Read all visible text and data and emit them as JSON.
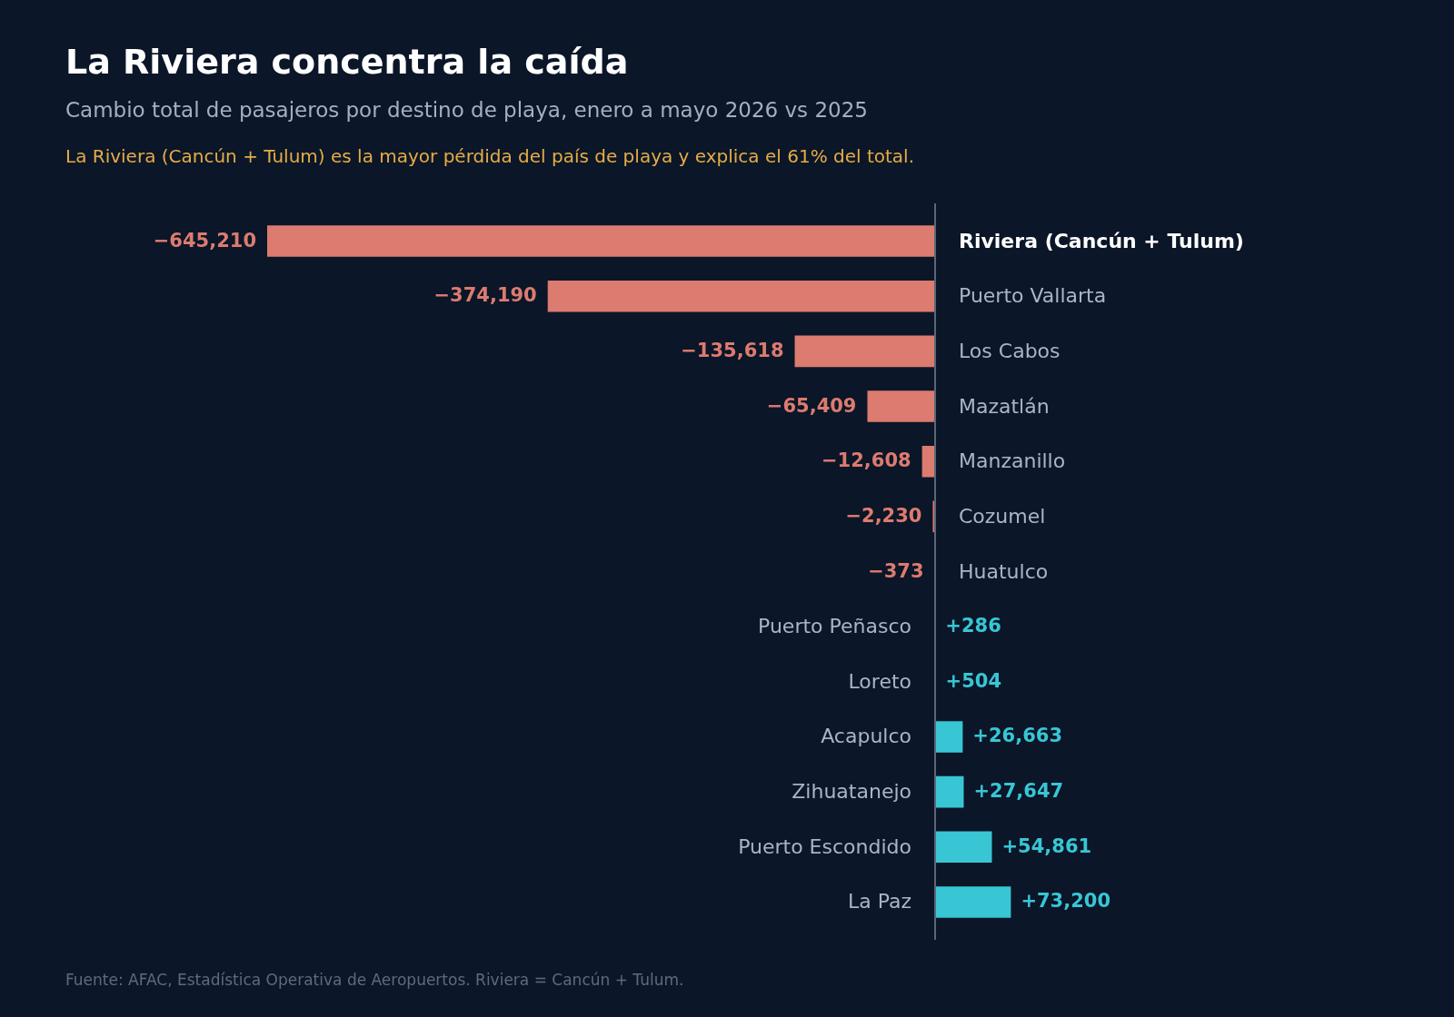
{
  "chart_data": {
    "type": "bar",
    "orientation": "horizontal",
    "title": "La Riviera concentra la caída",
    "subtitle": "Cambio total de pasajeros por destino de playa, enero a mayo 2026 vs 2025",
    "annotations": [
      "La Riviera (Cancún + Tulum) es la mayor pérdida del país de playa y explica el 61% del total.",
      "Fuente: AFAC, Estadística Operativa de Aeropuertos. Riviera = Cancún + Tulum."
    ],
    "categories": [
      "Riviera (Cancún + Tulum)",
      "Puerto Vallarta",
      "Los Cabos",
      "Mazatlán",
      "Manzanillo",
      "Cozumel",
      "Huatulco",
      "Puerto Peñasco",
      "Loreto",
      "Acapulco",
      "Zihuatanejo",
      "Puerto Escondido",
      "La Paz"
    ],
    "values": [
      -645210,
      -374190,
      -135618,
      -65409,
      -12608,
      -2230,
      -373,
      286,
      504,
      26663,
      27647,
      54861,
      73200
    ],
    "value_labels": [
      "−645,210",
      "−374,190",
      "−135,618",
      "−65,409",
      "−12,608",
      "−2,230",
      "−373",
      "+286",
      "+504",
      "+26,663",
      "+27,647",
      "+54,861",
      "+73,200"
    ],
    "colors": [
      "#dc7b6f",
      "#dc7b6f",
      "#dc7b6f",
      "#dc7b6f",
      "#dc7b6f",
      "#dc7b6f",
      "#dc7b6f",
      "#38c6d4",
      "#38c6d4",
      "#38c6d4",
      "#38c6d4",
      "#38c6d4",
      "#38c6d4"
    ]
  }
}
